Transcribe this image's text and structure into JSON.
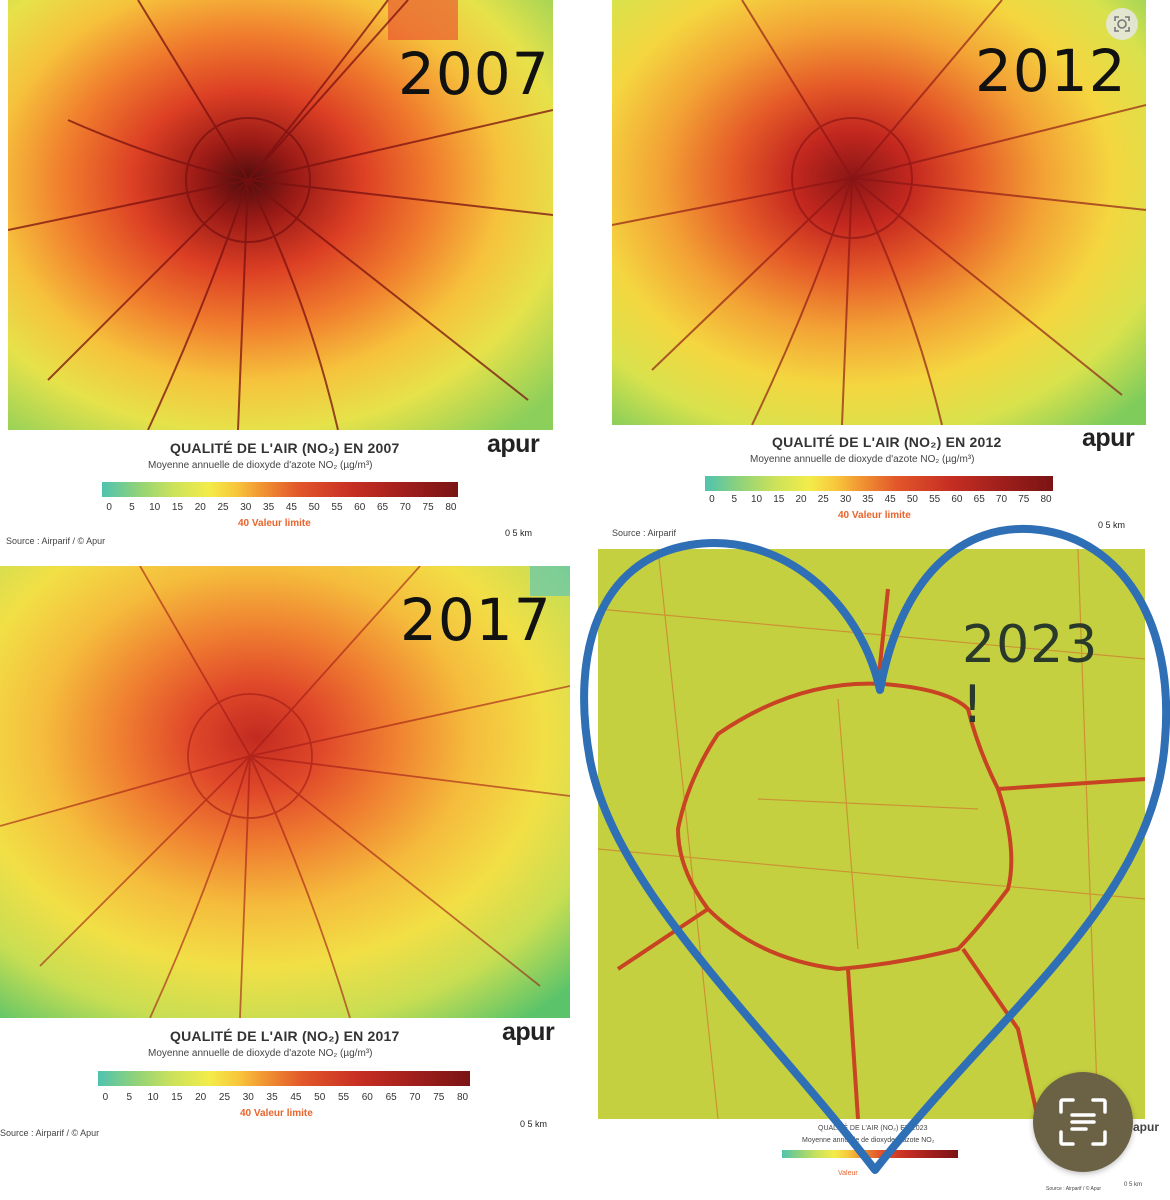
{
  "panels": [
    {
      "year": "2007",
      "title": "QUALITÉ DE L'AIR (NO₂) EN 2007",
      "subtitle": "Moyenne annuelle de dioxyde d'azote NO₂ (µg/m³)",
      "brand": "apur",
      "limit": "40 Valeur limite",
      "source": "Source : Airparif / © Apur",
      "scale_label": "0     5 km"
    },
    {
      "year": "2012",
      "title": "QUALITÉ DE L'AIR (NO₂) EN 2012",
      "subtitle": "Moyenne annuelle de dioxyde d'azote NO₂ (µg/m³)",
      "brand": "apur",
      "limit": "40 Valeur limite",
      "source": "Source : Airparif",
      "scale_label": "0     5 km"
    },
    {
      "year": "2017",
      "title": "QUALITÉ DE L'AIR (NO₂) EN 2017",
      "subtitle": "Moyenne annuelle de dioxyde d'azote NO₂ (µg/m³)",
      "brand": "apur",
      "limit": "40 Valeur limite",
      "source": "Source : Airparif / © Apur",
      "scale_label": "0     5 km"
    },
    {
      "year": "2023 !",
      "title": "QUALITÉ DE L'AIR (NO₂) EN 2023",
      "subtitle": "Moyenne annuelle de dioxyde d'azote NO₂",
      "brand": "apur",
      "limit": "Valeur",
      "source": "Source : Airparif / © Apur",
      "scale_label": "0     5 km"
    }
  ],
  "legend_ticks": [
    "0",
    "5",
    "10",
    "15",
    "20",
    "25",
    "30",
    "35",
    "45",
    "50",
    "55",
    "60",
    "65",
    "70",
    "75",
    "80"
  ],
  "colors": {
    "heart": "#2f6fb5",
    "limit": "#e8642c",
    "lens_button": "#6b6245"
  },
  "icons": {
    "lens_button": "text-scan-icon",
    "corner_button": "lens-icon"
  }
}
